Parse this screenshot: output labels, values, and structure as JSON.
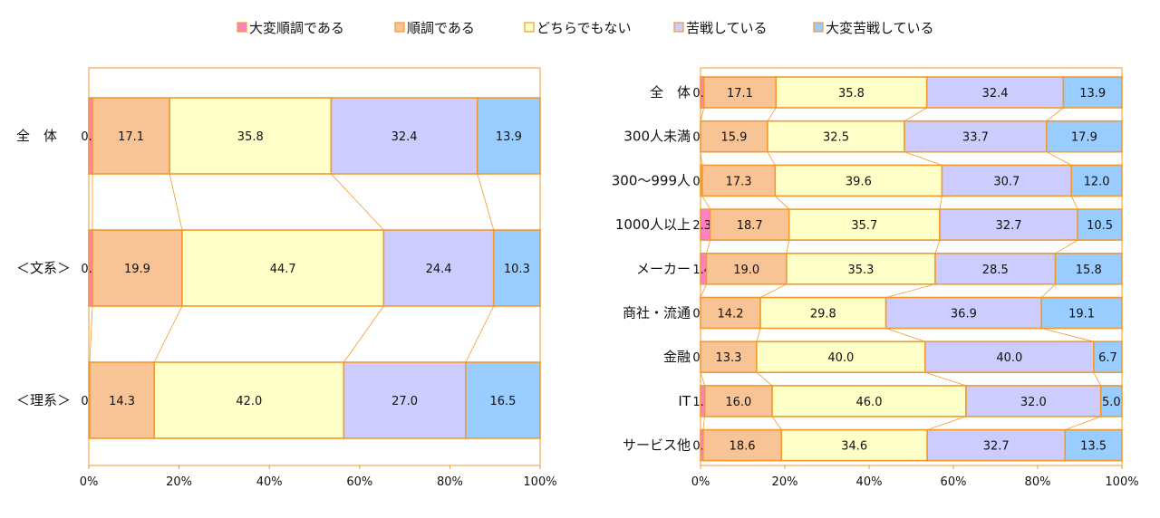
{
  "legend": {
    "items": [
      {
        "label": "大変順調である",
        "color": "#ff80c0"
      },
      {
        "label": "順調である",
        "color": "#f8c496"
      },
      {
        "label": "どちらでもない",
        "color": "#ffffc8"
      },
      {
        "label": "苦戦している",
        "color": "#ccccff"
      },
      {
        "label": "大変苦戦している",
        "color": "#99ccff"
      }
    ]
  },
  "colors": {
    "border": "#f39a2c",
    "segments": [
      "#ff80c0",
      "#f8c496",
      "#ffffc8",
      "#ccccff",
      "#99ccff"
    ]
  },
  "chart_data": [
    {
      "type": "bar",
      "orientation": "horizontal",
      "stacked": "percent",
      "categories": [
        "全　体",
        "＜文系＞",
        "＜理系＞"
      ],
      "series": [
        {
          "name": "大変順調である",
          "values": [
            0.8,
            0.8,
            0.2
          ]
        },
        {
          "name": "順調である",
          "values": [
            17.1,
            19.9,
            14.3
          ]
        },
        {
          "name": "どちらでもない",
          "values": [
            35.8,
            44.7,
            42.0
          ]
        },
        {
          "name": "苦戦している",
          "values": [
            32.4,
            24.4,
            27.0
          ]
        },
        {
          "name": "大変苦戦している",
          "values": [
            13.9,
            10.3,
            16.5
          ]
        }
      ],
      "xticks": [
        "0%",
        "20%",
        "40%",
        "60%",
        "80%",
        "100%"
      ],
      "xlim": [
        0,
        100
      ],
      "series_lines": true,
      "legend_position": "top"
    },
    {
      "type": "bar",
      "orientation": "horizontal",
      "stacked": "percent",
      "categories": [
        "全　体",
        "300人未満",
        "300～999人",
        "1000人以上",
        "メーカー",
        "商社・流通",
        "金融",
        "IT",
        "サービス他"
      ],
      "series": [
        {
          "name": "大変順調である",
          "values": [
            0.8,
            0.0,
            0.4,
            2.3,
            1.4,
            0.0,
            0.0,
            1.0,
            0.6
          ]
        },
        {
          "name": "順調である",
          "values": [
            17.1,
            15.9,
            17.3,
            18.7,
            19.0,
            14.2,
            13.3,
            16.0,
            18.6
          ]
        },
        {
          "name": "どちらでもない",
          "values": [
            35.8,
            32.5,
            39.6,
            35.7,
            35.3,
            29.8,
            40.0,
            46.0,
            34.6
          ]
        },
        {
          "name": "苦戦している",
          "values": [
            32.4,
            33.7,
            30.7,
            32.7,
            28.5,
            36.9,
            40.0,
            32.0,
            32.7
          ]
        },
        {
          "name": "大変苦戦している",
          "values": [
            13.9,
            17.9,
            12.0,
            10.5,
            15.8,
            19.1,
            6.7,
            5.0,
            13.5
          ]
        }
      ],
      "xticks": [
        "0%",
        "20%",
        "40%",
        "60%",
        "80%",
        "100%"
      ],
      "xlim": [
        0,
        100
      ],
      "series_lines": true,
      "legend_position": "top"
    }
  ]
}
